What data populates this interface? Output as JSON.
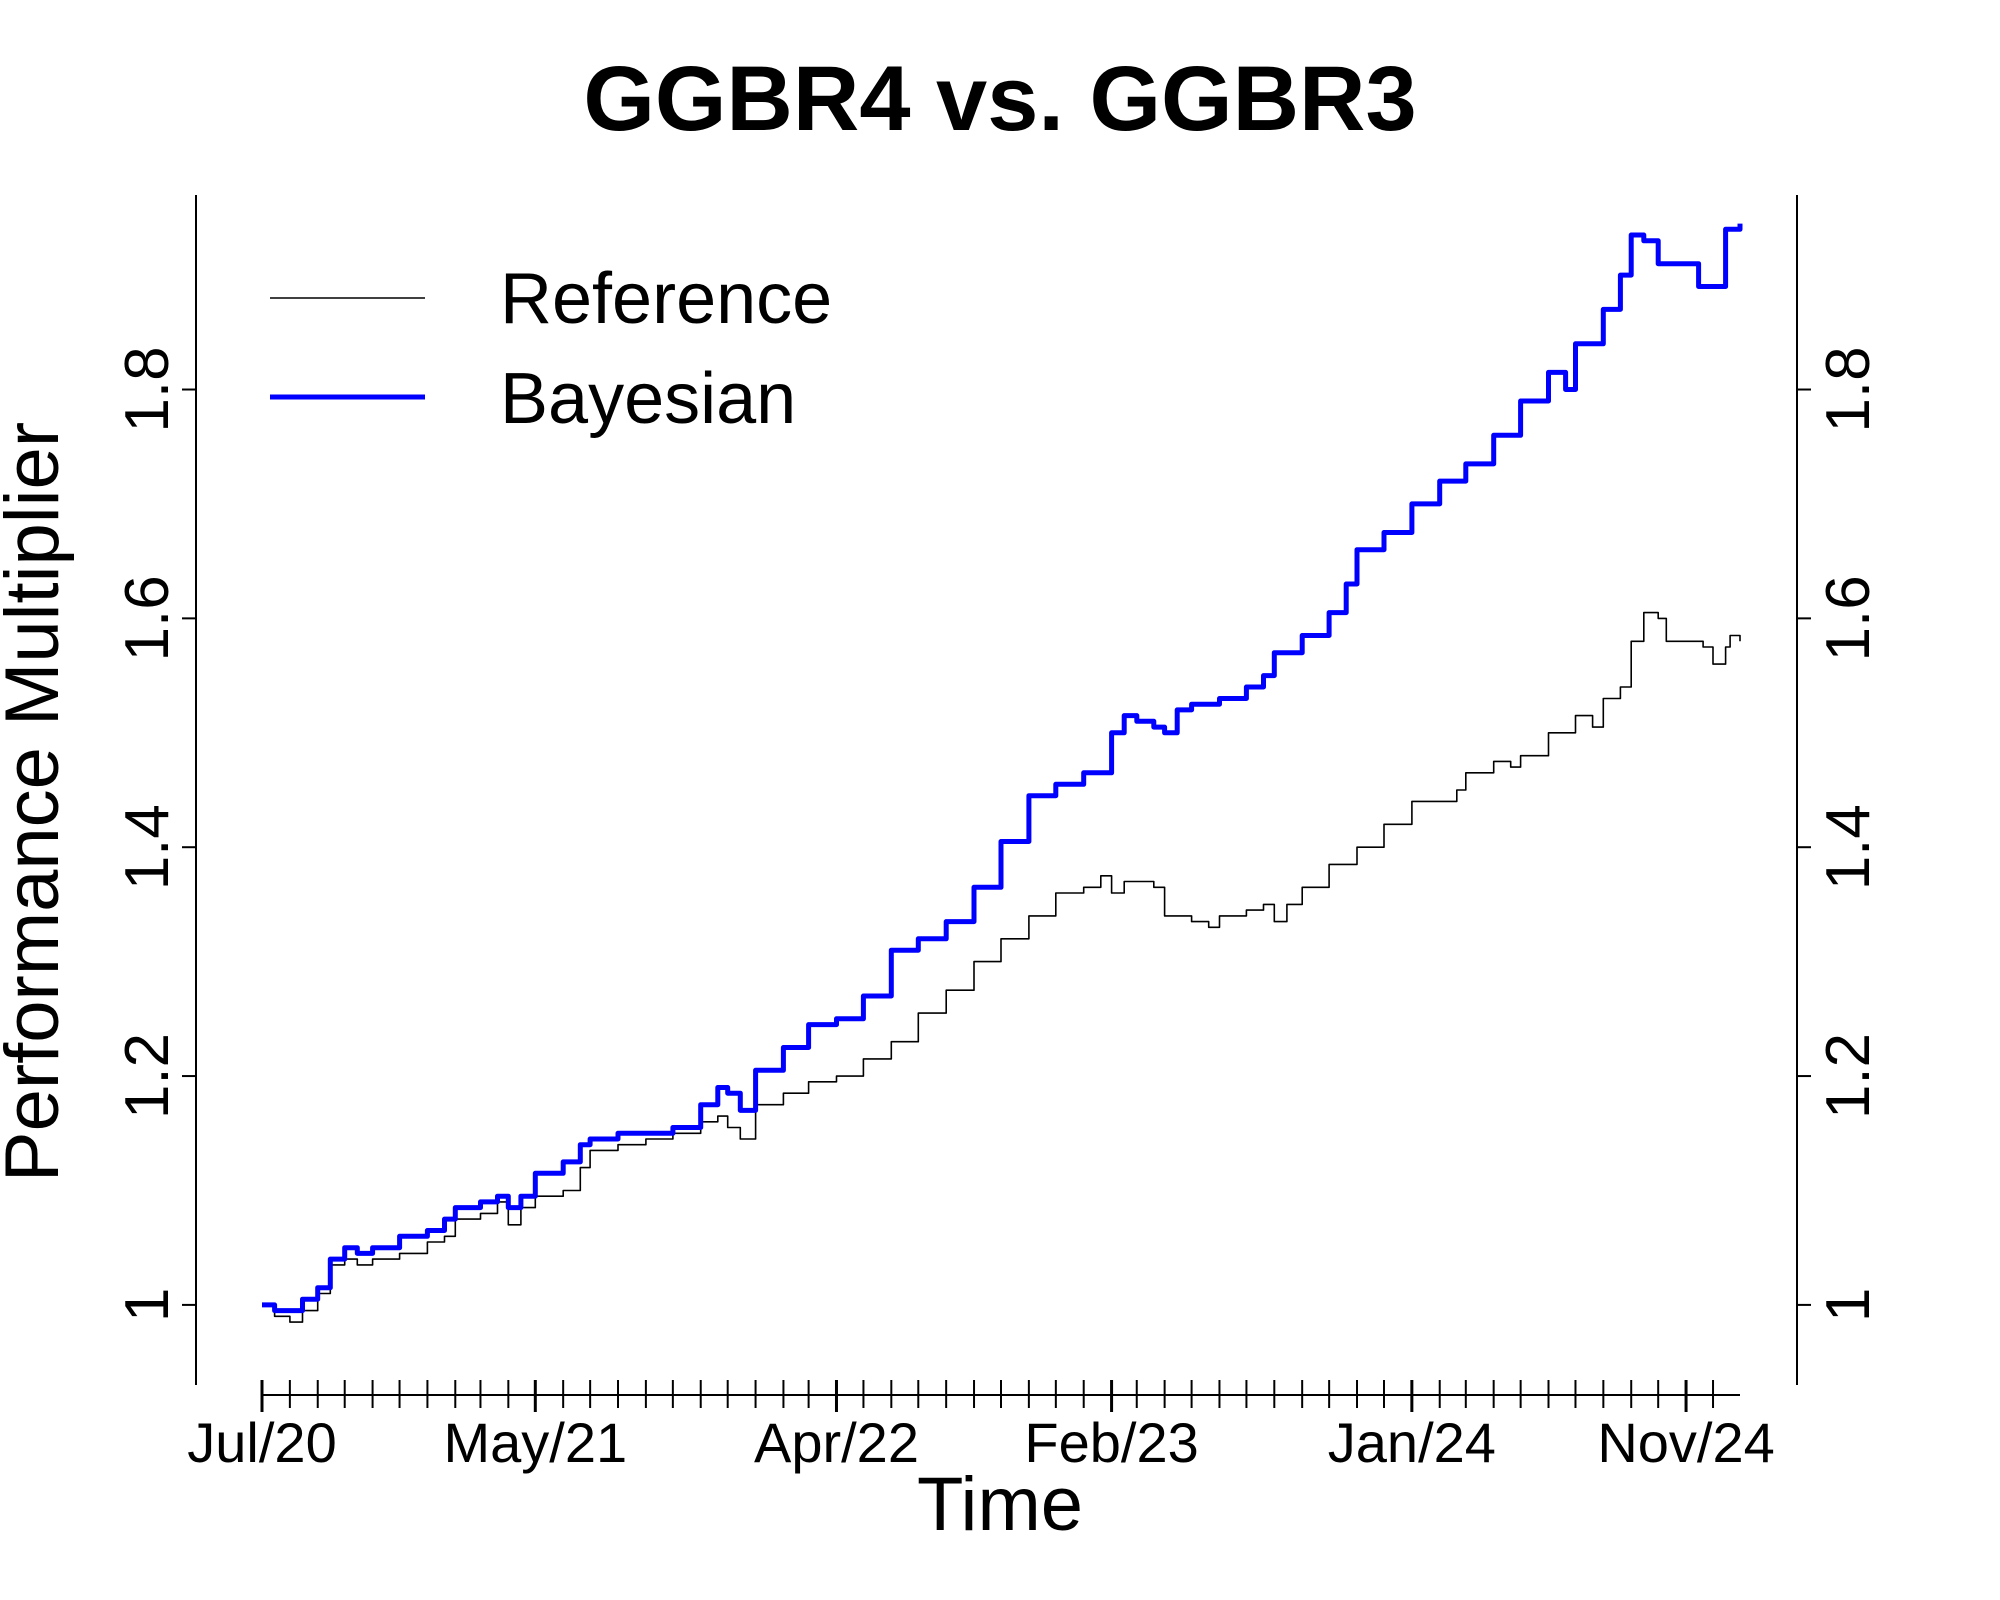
{
  "chart_data": {
    "type": "line",
    "title": "GGBR4 vs. GGBR3",
    "xlabel": "Time",
    "ylabel": "Performance Multiplier",
    "ylim": [
      0.93,
      1.97
    ],
    "xlim": [
      "2020-07-01",
      "2024-12-31"
    ],
    "yticks": [
      1.0,
      1.2,
      1.4,
      1.6,
      1.8
    ],
    "ytick_labels": [
      "1",
      "1.2",
      "1.4",
      "1.6",
      "1.8"
    ],
    "xtick_labels": [
      {
        "date": "2020-07-01",
        "label": "Jul/20"
      },
      {
        "date": "2021-05-01",
        "label": "May/21"
      },
      {
        "date": "2022-04-01",
        "label": "Apr/22"
      },
      {
        "date": "2023-02-01",
        "label": "Feb/23"
      },
      {
        "date": "2024-01-01",
        "label": "Jan/24"
      },
      {
        "date": "2024-11-01",
        "label": "Nov/24"
      }
    ],
    "minor_ticks": "monthly",
    "right_axis": true,
    "grid": false,
    "legend_position": "top-left",
    "series": [
      {
        "name": "Reference",
        "color": "#000000",
        "line": "thin",
        "points": [
          [
            "2020-07-01",
            1.0
          ],
          [
            "2020-07-15",
            0.99
          ],
          [
            "2020-08-01",
            0.985
          ],
          [
            "2020-08-15",
            0.995
          ],
          [
            "2020-09-01",
            1.01
          ],
          [
            "2020-09-15",
            1.035
          ],
          [
            "2020-10-01",
            1.04
          ],
          [
            "2020-10-15",
            1.035
          ],
          [
            "2020-11-01",
            1.04
          ],
          [
            "2020-12-01",
            1.045
          ],
          [
            "2021-01-01",
            1.055
          ],
          [
            "2021-01-20",
            1.06
          ],
          [
            "2021-02-01",
            1.075
          ],
          [
            "2021-03-01",
            1.08
          ],
          [
            "2021-03-20",
            1.09
          ],
          [
            "2021-04-01",
            1.07
          ],
          [
            "2021-04-15",
            1.085
          ],
          [
            "2021-05-01",
            1.095
          ],
          [
            "2021-06-01",
            1.1
          ],
          [
            "2021-06-20",
            1.12
          ],
          [
            "2021-07-01",
            1.135
          ],
          [
            "2021-08-01",
            1.14
          ],
          [
            "2021-09-01",
            1.145
          ],
          [
            "2021-10-01",
            1.15
          ],
          [
            "2021-11-01",
            1.16
          ],
          [
            "2021-11-20",
            1.165
          ],
          [
            "2021-12-01",
            1.155
          ],
          [
            "2021-12-15",
            1.145
          ],
          [
            "2022-01-01",
            1.175
          ],
          [
            "2022-02-01",
            1.185
          ],
          [
            "2022-03-01",
            1.195
          ],
          [
            "2022-04-01",
            1.2
          ],
          [
            "2022-05-01",
            1.215
          ],
          [
            "2022-06-01",
            1.23
          ],
          [
            "2022-07-01",
            1.255
          ],
          [
            "2022-08-01",
            1.275
          ],
          [
            "2022-09-01",
            1.3
          ],
          [
            "2022-10-01",
            1.32
          ],
          [
            "2022-11-01",
            1.34
          ],
          [
            "2022-12-01",
            1.36
          ],
          [
            "2023-01-01",
            1.365
          ],
          [
            "2023-01-20",
            1.375
          ],
          [
            "2023-02-01",
            1.36
          ],
          [
            "2023-02-15",
            1.37
          ],
          [
            "2023-03-01",
            1.37
          ],
          [
            "2023-03-20",
            1.365
          ],
          [
            "2023-04-01",
            1.34
          ],
          [
            "2023-05-01",
            1.335
          ],
          [
            "2023-05-20",
            1.33
          ],
          [
            "2023-06-01",
            1.34
          ],
          [
            "2023-07-01",
            1.345
          ],
          [
            "2023-07-20",
            1.35
          ],
          [
            "2023-08-01",
            1.335
          ],
          [
            "2023-08-15",
            1.35
          ],
          [
            "2023-09-01",
            1.365
          ],
          [
            "2023-10-01",
            1.385
          ],
          [
            "2023-11-01",
            1.4
          ],
          [
            "2023-12-01",
            1.42
          ],
          [
            "2024-01-01",
            1.44
          ],
          [
            "2024-02-01",
            1.44
          ],
          [
            "2024-02-20",
            1.45
          ],
          [
            "2024-03-01",
            1.465
          ],
          [
            "2024-04-01",
            1.475
          ],
          [
            "2024-04-20",
            1.47
          ],
          [
            "2024-05-01",
            1.48
          ],
          [
            "2024-06-01",
            1.5
          ],
          [
            "2024-07-01",
            1.515
          ],
          [
            "2024-07-20",
            1.505
          ],
          [
            "2024-08-01",
            1.53
          ],
          [
            "2024-08-20",
            1.54
          ],
          [
            "2024-09-01",
            1.58
          ],
          [
            "2024-09-15",
            1.605
          ],
          [
            "2024-10-01",
            1.6
          ],
          [
            "2024-10-10",
            1.58
          ],
          [
            "2024-11-01",
            1.58
          ],
          [
            "2024-11-20",
            1.575
          ],
          [
            "2024-12-01",
            1.56
          ],
          [
            "2024-12-15",
            1.575
          ],
          [
            "2024-12-20",
            1.585
          ],
          [
            "2024-12-31",
            1.58
          ]
        ]
      },
      {
        "name": "Bayesian",
        "color": "#0000ff",
        "line": "thick",
        "points": [
          [
            "2020-07-01",
            1.0
          ],
          [
            "2020-07-15",
            0.995
          ],
          [
            "2020-08-01",
            0.995
          ],
          [
            "2020-08-15",
            1.005
          ],
          [
            "2020-09-01",
            1.015
          ],
          [
            "2020-09-15",
            1.04
          ],
          [
            "2020-10-01",
            1.05
          ],
          [
            "2020-10-15",
            1.045
          ],
          [
            "2020-11-01",
            1.05
          ],
          [
            "2020-12-01",
            1.06
          ],
          [
            "2021-01-01",
            1.065
          ],
          [
            "2021-01-20",
            1.075
          ],
          [
            "2021-02-01",
            1.085
          ],
          [
            "2021-03-01",
            1.09
          ],
          [
            "2021-03-20",
            1.095
          ],
          [
            "2021-04-01",
            1.085
          ],
          [
            "2021-04-15",
            1.095
          ],
          [
            "2021-05-01",
            1.115
          ],
          [
            "2021-06-01",
            1.125
          ],
          [
            "2021-06-20",
            1.14
          ],
          [
            "2021-07-01",
            1.145
          ],
          [
            "2021-08-01",
            1.15
          ],
          [
            "2021-09-01",
            1.15
          ],
          [
            "2021-10-01",
            1.155
          ],
          [
            "2021-11-01",
            1.175
          ],
          [
            "2021-11-20",
            1.19
          ],
          [
            "2021-12-01",
            1.185
          ],
          [
            "2021-12-15",
            1.17
          ],
          [
            "2022-01-01",
            1.205
          ],
          [
            "2022-02-01",
            1.225
          ],
          [
            "2022-03-01",
            1.245
          ],
          [
            "2022-04-01",
            1.25
          ],
          [
            "2022-05-01",
            1.27
          ],
          [
            "2022-06-01",
            1.31
          ],
          [
            "2022-07-01",
            1.32
          ],
          [
            "2022-08-01",
            1.335
          ],
          [
            "2022-09-01",
            1.365
          ],
          [
            "2022-10-01",
            1.405
          ],
          [
            "2022-11-01",
            1.445
          ],
          [
            "2022-12-01",
            1.455
          ],
          [
            "2023-01-01",
            1.465
          ],
          [
            "2023-02-01",
            1.5
          ],
          [
            "2023-02-15",
            1.515
          ],
          [
            "2023-03-01",
            1.51
          ],
          [
            "2023-03-20",
            1.505
          ],
          [
            "2023-04-01",
            1.5
          ],
          [
            "2023-04-15",
            1.52
          ],
          [
            "2023-05-01",
            1.525
          ],
          [
            "2023-06-01",
            1.53
          ],
          [
            "2023-07-01",
            1.54
          ],
          [
            "2023-07-20",
            1.55
          ],
          [
            "2023-08-01",
            1.57
          ],
          [
            "2023-09-01",
            1.585
          ],
          [
            "2023-10-01",
            1.605
          ],
          [
            "2023-10-20",
            1.63
          ],
          [
            "2023-11-01",
            1.66
          ],
          [
            "2023-12-01",
            1.675
          ],
          [
            "2024-01-01",
            1.7
          ],
          [
            "2024-02-01",
            1.72
          ],
          [
            "2024-03-01",
            1.735
          ],
          [
            "2024-04-01",
            1.76
          ],
          [
            "2024-05-01",
            1.79
          ],
          [
            "2024-06-01",
            1.815
          ],
          [
            "2024-06-20",
            1.8
          ],
          [
            "2024-07-01",
            1.84
          ],
          [
            "2024-08-01",
            1.87
          ],
          [
            "2024-08-20",
            1.9
          ],
          [
            "2024-09-01",
            1.935
          ],
          [
            "2024-09-15",
            1.93
          ],
          [
            "2024-10-01",
            1.91
          ],
          [
            "2024-11-01",
            1.91
          ],
          [
            "2024-11-15",
            1.89
          ],
          [
            "2024-12-01",
            1.89
          ],
          [
            "2024-12-15",
            1.94
          ],
          [
            "2024-12-31",
            1.945
          ]
        ]
      }
    ]
  }
}
